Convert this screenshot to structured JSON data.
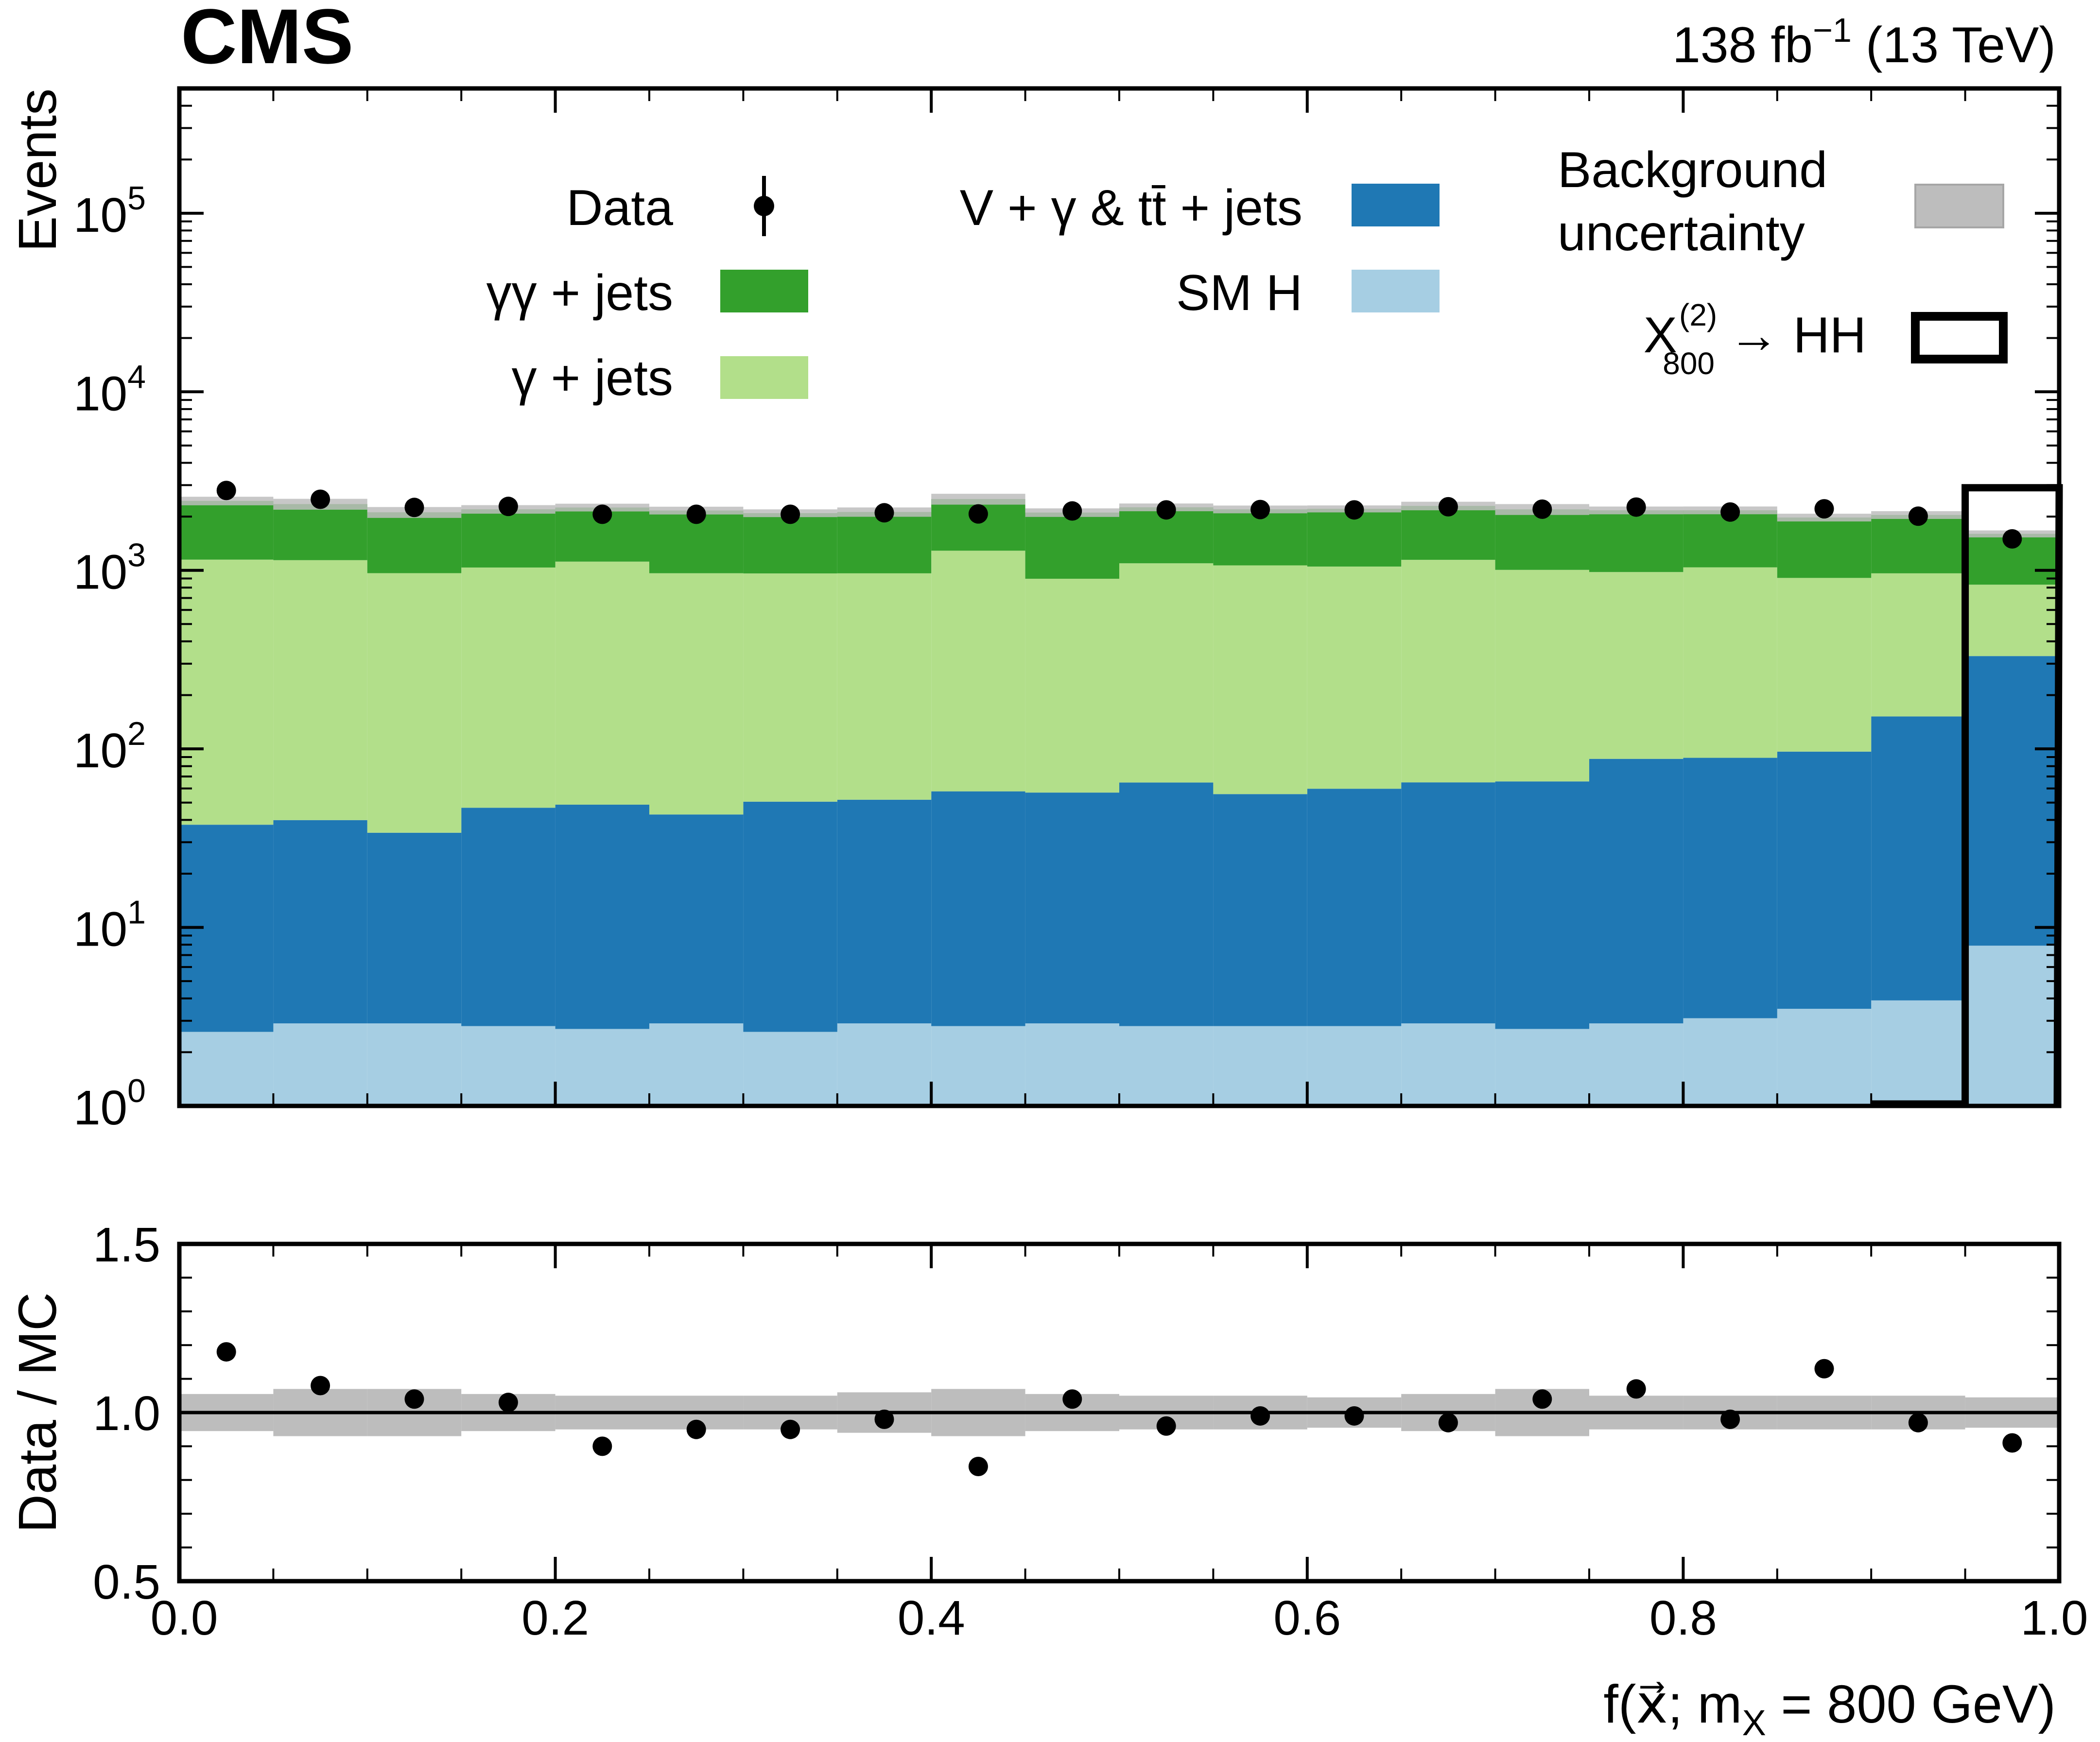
{
  "header": {
    "experiment": "CMS",
    "lumi_value": "138 fb",
    "lumi_exp": "−1",
    "energy": " (13 TeV)"
  },
  "chart_data": [
    {
      "type": "bar",
      "stacked": true,
      "yscale": "log",
      "ylim": [
        1,
        500000
      ],
      "xlim": [
        0.0,
        1.0
      ],
      "ylabel": "Events",
      "bin_edges": [
        0.0,
        0.05,
        0.1,
        0.15,
        0.2,
        0.25,
        0.3,
        0.35,
        0.4,
        0.45,
        0.5,
        0.55,
        0.6,
        0.65,
        0.7,
        0.75,
        0.8,
        0.85,
        0.9,
        0.95,
        1.0
      ],
      "y_ticks": [
        {
          "base": "10",
          "exp": "0",
          "value": 1
        },
        {
          "base": "10",
          "exp": "1",
          "value": 10
        },
        {
          "base": "10",
          "exp": "2",
          "value": 100
        },
        {
          "base": "10",
          "exp": "3",
          "value": 1000
        },
        {
          "base": "10",
          "exp": "4",
          "value": 10000
        },
        {
          "base": "10",
          "exp": "5",
          "value": 100000
        }
      ],
      "series": [
        {
          "key": "smh",
          "name": "SM H",
          "color": "#a6cee3",
          "values": [
            2.6,
            2.9,
            2.9,
            2.8,
            2.7,
            2.9,
            2.6,
            2.9,
            2.8,
            2.9,
            2.8,
            2.8,
            2.8,
            2.9,
            2.7,
            2.9,
            3.1,
            3.5,
            3.9,
            7.9
          ]
        },
        {
          "key": "vg",
          "name": "V + γ & tt̄ + jets",
          "color": "#1f78b4",
          "values": [
            35,
            37,
            31,
            44,
            46,
            40,
            48,
            49,
            55,
            54,
            62,
            53,
            57,
            62,
            63,
            85,
            86,
            93,
            148,
            323
          ]
        },
        {
          "key": "gj",
          "name": "γ + jets",
          "color": "#b2df8a",
          "values": [
            1110,
            1100,
            930,
            990,
            1070,
            920,
            910,
            910,
            1230,
            840,
            1030,
            1010,
            990,
            1080,
            940,
            890,
            950,
            810,
            810,
            500
          ]
        },
        {
          "key": "ggj",
          "name": "γγ + jets",
          "color": "#33a02c",
          "values": [
            1300,
            1210,
            1150,
            1160,
            1130,
            1200,
            1130,
            1160,
            1220,
            1210,
            1160,
            1130,
            1160,
            1150,
            1190,
            1190,
            1130,
            1070,
            1080,
            770
          ]
        }
      ],
      "uncertainty": {
        "name": "Background uncertainty",
        "color": "#bdbdbd",
        "rel_err": [
          0.055,
          0.07,
          0.07,
          0.055,
          0.05,
          0.05,
          0.05,
          0.06,
          0.07,
          0.055,
          0.05,
          0.05,
          0.045,
          0.055,
          0.07,
          0.05,
          0.05,
          0.05,
          0.05,
          0.045
        ]
      },
      "data": {
        "name": "Data",
        "color": "#000000",
        "values": [
          2800,
          2500,
          2250,
          2280,
          2060,
          2060,
          2060,
          2100,
          2070,
          2150,
          2180,
          2190,
          2180,
          2270,
          2200,
          2260,
          2120,
          2210,
          2010,
          1500
        ]
      },
      "signal": {
        "name": "X₈₀₀⁽²⁾ → HH",
        "label_main": "X",
        "label_sup": "(2)",
        "label_sub": "800",
        "label_rest": " → HH",
        "values": [
          0,
          0,
          0,
          0,
          0,
          0,
          0,
          0,
          0,
          0,
          0,
          0,
          0,
          0,
          0,
          0,
          0,
          0,
          1.0,
          2900
        ]
      },
      "legend": {
        "placement": "top",
        "data_label": "Data",
        "gg_label": "γγ + jets",
        "g_label": "γ + jets",
        "vg_label_a": "V + γ & t",
        "vg_label_b": "t̄",
        "vg_label_c": " + jets",
        "smh_label": "SM H",
        "unc_label_1": "Background",
        "unc_label_2": "uncertainty"
      }
    },
    {
      "type": "scatter",
      "ylabel": "Data / MC",
      "xlabel_pre": "f(",
      "xlabel_vec": "x⃗",
      "xlabel_mid": "; m",
      "xlabel_sub": "X",
      "xlabel_post": " = 800 GeV)",
      "xlim": [
        0.0,
        1.0
      ],
      "ylim": [
        0.5,
        1.5
      ],
      "x_ticks": [
        "0.0",
        "0.2",
        "0.4",
        "0.6",
        "0.8",
        "1.0"
      ],
      "y_ticks": [
        "0.5",
        "1.0",
        "1.5"
      ],
      "reference_line": 1.0,
      "ratio": [
        1.18,
        1.08,
        1.04,
        1.03,
        0.9,
        0.95,
        0.95,
        0.98,
        0.84,
        1.04,
        0.96,
        0.99,
        0.99,
        0.97,
        1.04,
        1.07,
        0.98,
        1.13,
        0.97,
        0.91
      ]
    }
  ]
}
